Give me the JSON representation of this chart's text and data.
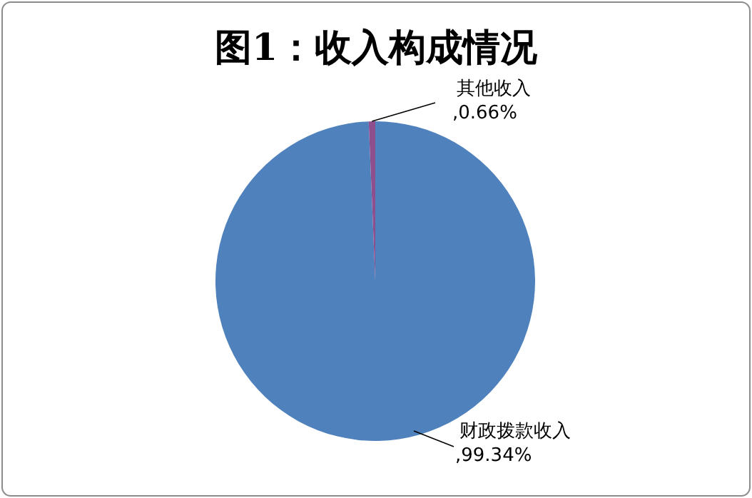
{
  "chart_data": {
    "type": "pie",
    "title": "图1：收入构成情况",
    "categories": [
      "财政拨款收入",
      "其他收入"
    ],
    "values": [
      99.34,
      0.66
    ],
    "colors": [
      "#4f81bd",
      "#8e4f8f"
    ],
    "value_labels": [
      ",99.34%",
      ",0.66%"
    ]
  }
}
